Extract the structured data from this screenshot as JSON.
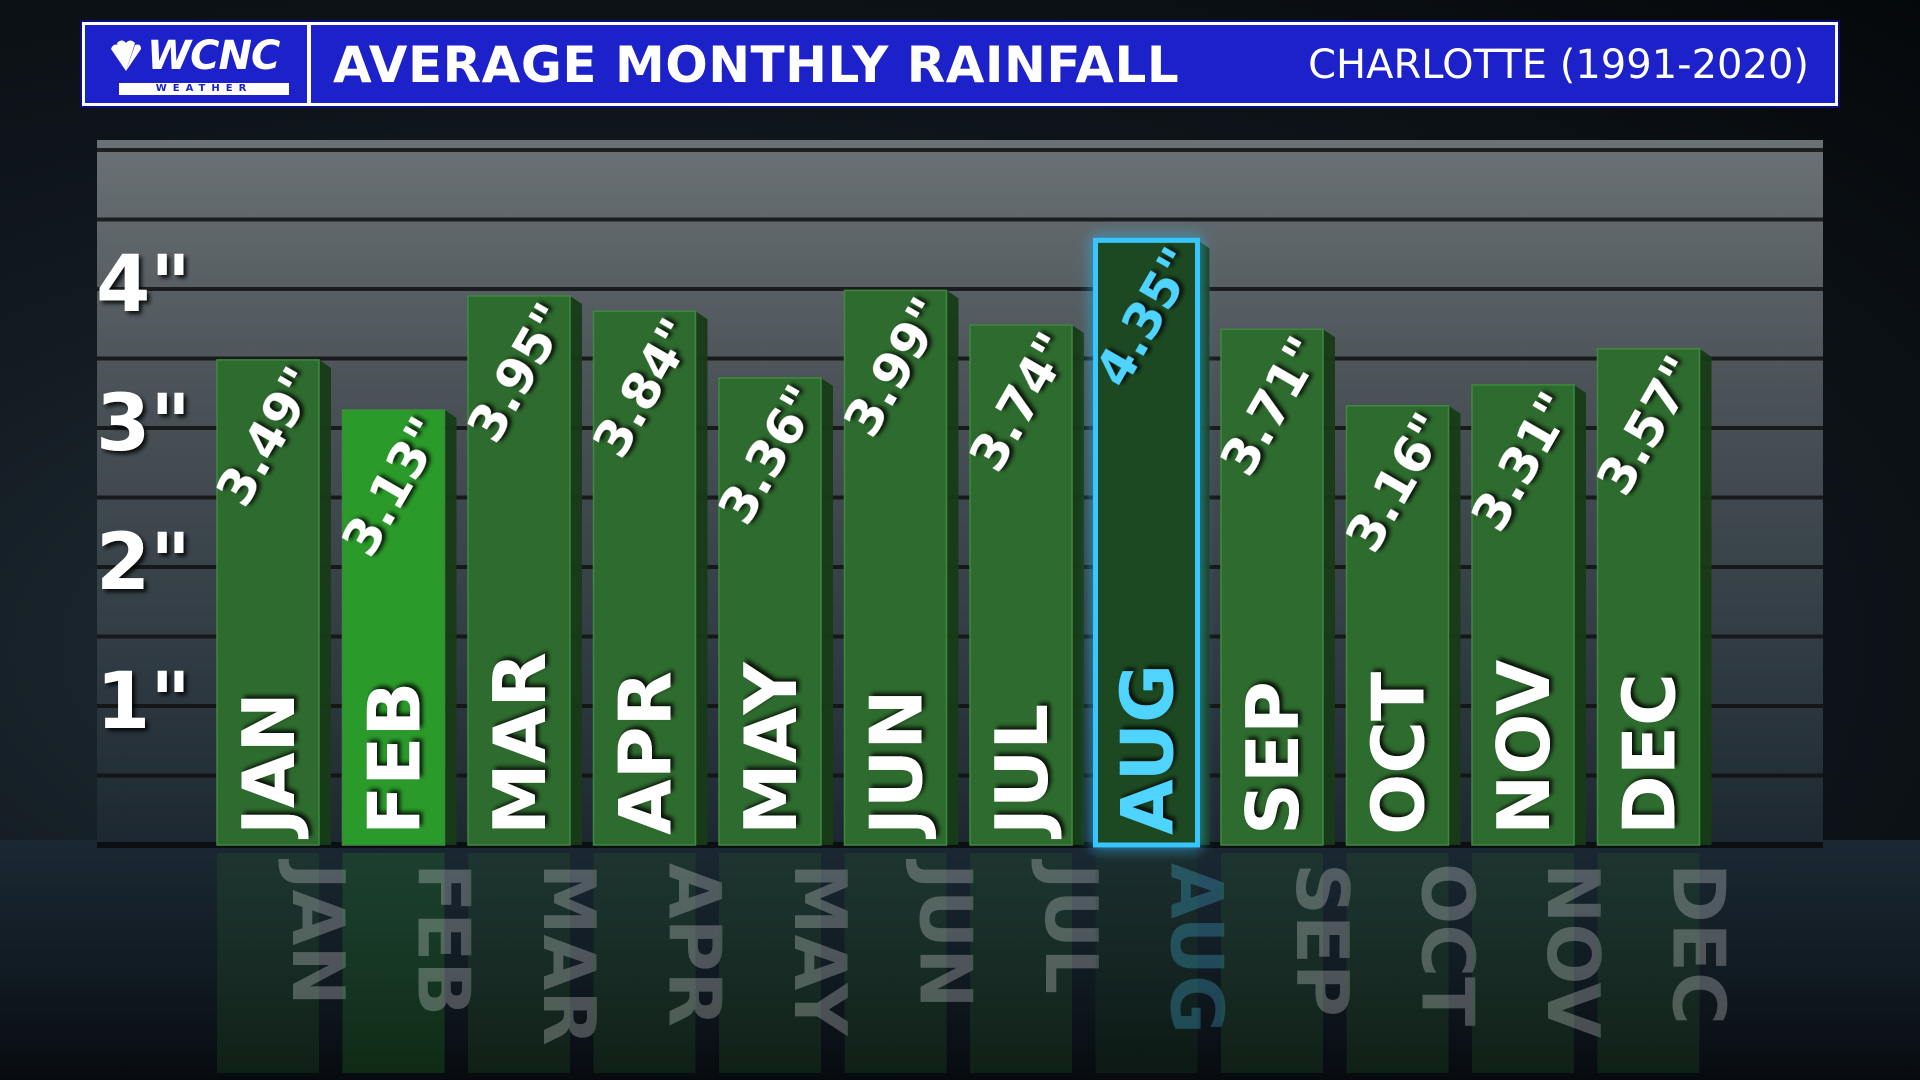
{
  "header": {
    "logo_text": "WCNC",
    "logo_subtext": "WEATHER",
    "title": "AVERAGE MONTHLY RAINFALL",
    "subtitle": "CHARLOTTE (1991-2020)"
  },
  "chart_data": {
    "type": "bar",
    "title": "AVERAGE MONTHLY RAINFALL",
    "subtitle": "CHARLOTTE (1991-2020)",
    "categories": [
      "JAN",
      "FEB",
      "MAR",
      "APR",
      "MAY",
      "JUN",
      "JUL",
      "AUG",
      "SEP",
      "OCT",
      "NOV",
      "DEC"
    ],
    "values": [
      3.49,
      3.13,
      3.95,
      3.84,
      3.36,
      3.99,
      3.74,
      4.35,
      3.71,
      3.16,
      3.31,
      3.57
    ],
    "value_labels": [
      "3.49\"",
      "3.13\"",
      "3.95\"",
      "3.84\"",
      "3.36\"",
      "3.99\"",
      "3.74\"",
      "4.35\"",
      "3.71\"",
      "3.16\"",
      "3.31\"",
      "3.57\""
    ],
    "y_ticks": [
      1,
      2,
      3,
      4
    ],
    "y_tick_labels": [
      "1\"",
      "2\"",
      "3\"",
      "4\""
    ],
    "ylim": [
      0,
      5
    ],
    "grid": true,
    "highlight_category": "AUG",
    "colors": {
      "bar": "#2e6b2e",
      "bar_bright": "#2a9a2a",
      "highlight_bar": "#1f4a23",
      "highlight_glow": "#39c6ff",
      "highlight_text": "#4fd3ff",
      "text": "#ffffff",
      "header_bg": "#1c21c9"
    }
  }
}
